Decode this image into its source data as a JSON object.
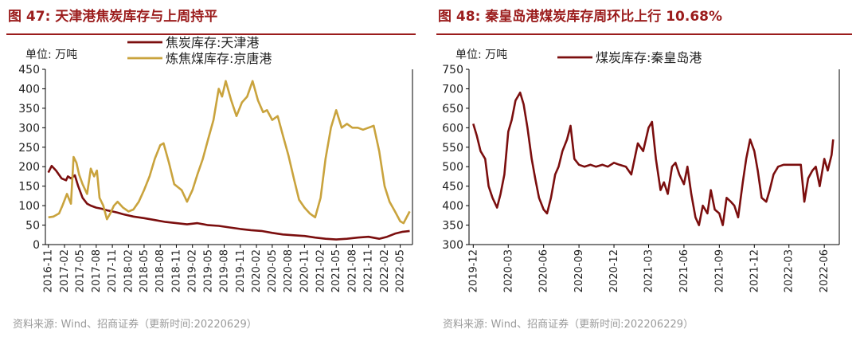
{
  "charts": [
    {
      "figure_title": "图 47:  天津港焦炭库存与上周持平",
      "source": "资料来源:  Wind、招商证券（更新时间:20220629）"
    },
    {
      "figure_title": "图 48:  秦皇岛港煤炭库存周环比上行 10.68%",
      "source": "资料来源:  Wind、招商证券（更新时间:202206229）"
    }
  ],
  "colors": {
    "title": "#9b1c1c",
    "series_dark_red": "#7b0e0e",
    "series_gold": "#c9a33d"
  },
  "chart_data": [
    {
      "type": "line",
      "unit_label": "单位:  万吨",
      "ylim": [
        0,
        450
      ],
      "yticks": [
        0,
        50,
        100,
        150,
        200,
        250,
        300,
        350,
        400,
        450
      ],
      "xtick_labels": [
        "2016-11",
        "2017-02",
        "2017-05",
        "2017-08",
        "2017-11",
        "2018-02",
        "2018-05",
        "2018-08",
        "2018-11",
        "2019-02",
        "2019-05",
        "2019-08",
        "2019-11",
        "2020-02",
        "2020-05",
        "2020-08",
        "2020-11",
        "2021-02",
        "2021-05",
        "2021-08",
        "2021-11",
        "2022-02",
        "2022-05"
      ],
      "legend_position": "top",
      "grid": false,
      "series": [
        {
          "name": "焦炭库存:天津港",
          "color": "#7b0e0e",
          "x": [
            "2016-11-01",
            "2016-11-20",
            "2016-12-15",
            "2017-01-15",
            "2017-02-10",
            "2017-02-20",
            "2017-03-10",
            "2017-04-01",
            "2017-04-20",
            "2017-05-15",
            "2017-06-10",
            "2017-07-01",
            "2017-08-01",
            "2017-09-01",
            "2017-10-01",
            "2017-11-01",
            "2017-12-01",
            "2018-01-01",
            "2018-03-01",
            "2018-05-01",
            "2018-07-01",
            "2018-09-01",
            "2018-11-01",
            "2019-01-01",
            "2019-03-01",
            "2019-05-01",
            "2019-07-01",
            "2019-09-01",
            "2019-11-01",
            "2020-01-01",
            "2020-03-01",
            "2020-05-01",
            "2020-07-01",
            "2020-09-01",
            "2020-11-01",
            "2021-01-01",
            "2021-03-01",
            "2021-05-01",
            "2021-07-01",
            "2021-09-01",
            "2021-11-01",
            "2022-01-01",
            "2022-02-15",
            "2022-04-01",
            "2022-05-15",
            "2022-06-24"
          ],
          "values": [
            185,
            202,
            190,
            170,
            165,
            175,
            170,
            178,
            150,
            120,
            105,
            100,
            95,
            92,
            88,
            85,
            82,
            78,
            72,
            68,
            63,
            58,
            55,
            52,
            55,
            50,
            48,
            44,
            40,
            37,
            35,
            30,
            26,
            24,
            22,
            18,
            15,
            13,
            15,
            18,
            20,
            15,
            20,
            28,
            33,
            35
          ]
        },
        {
          "name": "炼焦煤库存:京唐港",
          "color": "#c9a33d",
          "x": [
            "2016-11-01",
            "2016-12-01",
            "2017-01-01",
            "2017-01-20",
            "2017-02-15",
            "2017-03-10",
            "2017-03-25",
            "2017-04-10",
            "2017-04-25",
            "2017-05-15",
            "2017-06-10",
            "2017-07-01",
            "2017-07-20",
            "2017-08-05",
            "2017-08-20",
            "2017-09-10",
            "2017-10-01",
            "2017-10-20",
            "2017-11-10",
            "2017-12-01",
            "2018-01-01",
            "2018-02-01",
            "2018-03-01",
            "2018-04-01",
            "2018-05-01",
            "2018-06-01",
            "2018-07-01",
            "2018-08-01",
            "2018-08-20",
            "2018-09-20",
            "2018-10-20",
            "2018-12-01",
            "2019-01-01",
            "2019-02-01",
            "2019-03-01",
            "2019-04-01",
            "2019-05-01",
            "2019-06-01",
            "2019-07-01",
            "2019-07-20",
            "2019-08-10",
            "2019-09-10",
            "2019-10-10",
            "2019-11-10",
            "2019-12-10",
            "2020-01-10",
            "2020-02-10",
            "2020-03-10",
            "2020-04-01",
            "2020-05-01",
            "2020-06-01",
            "2020-07-01",
            "2020-08-01",
            "2020-09-01",
            "2020-10-01",
            "2020-11-01",
            "2020-12-01",
            "2021-01-01",
            "2021-02-01",
            "2021-03-01",
            "2021-04-01",
            "2021-05-01",
            "2021-06-01",
            "2021-07-01",
            "2021-08-01",
            "2021-09-01",
            "2021-10-01",
            "2021-11-01",
            "2021-12-01",
            "2022-01-01",
            "2022-02-01",
            "2022-03-01",
            "2022-04-01",
            "2022-05-01",
            "2022-05-20",
            "2022-06-24"
          ],
          "values": [
            70,
            72,
            80,
            100,
            130,
            105,
            225,
            210,
            180,
            155,
            130,
            195,
            175,
            190,
            120,
            100,
            65,
            80,
            100,
            110,
            95,
            85,
            90,
            110,
            140,
            175,
            220,
            255,
            260,
            210,
            155,
            140,
            110,
            140,
            180,
            220,
            270,
            320,
            400,
            380,
            420,
            370,
            330,
            365,
            380,
            420,
            370,
            340,
            345,
            320,
            330,
            280,
            230,
            170,
            115,
            95,
            80,
            70,
            120,
            220,
            300,
            345,
            300,
            310,
            300,
            300,
            295,
            300,
            305,
            240,
            150,
            110,
            85,
            60,
            55,
            85
          ]
        }
      ]
    },
    {
      "type": "line",
      "unit_label": "单位:  万吨",
      "ylim": [
        300,
        750
      ],
      "yticks": [
        300,
        350,
        400,
        450,
        500,
        550,
        600,
        650,
        700,
        750
      ],
      "xtick_labels": [
        "2019-12",
        "2020-03",
        "2020-06",
        "2020-09",
        "2020-12",
        "2021-03",
        "2021-06",
        "2021-09",
        "2021-12",
        "2022-03",
        "2022-06"
      ],
      "legend_position": "top",
      "grid": false,
      "series": [
        {
          "name": "煤炭库存:秦皇岛港",
          "color": "#7b0e0e",
          "x": [
            "2019-12-01",
            "2019-12-10",
            "2019-12-20",
            "2020-01-01",
            "2020-01-10",
            "2020-01-20",
            "2020-02-01",
            "2020-02-10",
            "2020-02-20",
            "2020-03-01",
            "2020-03-10",
            "2020-03-20",
            "2020-04-01",
            "2020-04-10",
            "2020-04-20",
            "2020-05-01",
            "2020-05-10",
            "2020-05-20",
            "2020-06-01",
            "2020-06-10",
            "2020-06-20",
            "2020-07-01",
            "2020-07-10",
            "2020-07-20",
            "2020-08-01",
            "2020-08-10",
            "2020-08-20",
            "2020-09-01",
            "2020-09-15",
            "2020-10-01",
            "2020-10-15",
            "2020-11-01",
            "2020-11-15",
            "2020-12-01",
            "2020-12-15",
            "2021-01-01",
            "2021-01-15",
            "2021-02-01",
            "2021-02-15",
            "2021-03-01",
            "2021-03-10",
            "2021-03-20",
            "2021-04-01",
            "2021-04-10",
            "2021-04-20",
            "2021-05-01",
            "2021-05-10",
            "2021-05-20",
            "2021-06-01",
            "2021-06-10",
            "2021-06-20",
            "2021-07-01",
            "2021-07-10",
            "2021-07-20",
            "2021-08-01",
            "2021-08-10",
            "2021-08-20",
            "2021-09-01",
            "2021-09-10",
            "2021-09-20",
            "2021-10-01",
            "2021-10-10",
            "2021-10-20",
            "2021-11-01",
            "2021-11-10",
            "2021-11-20",
            "2021-12-01",
            "2021-12-10",
            "2021-12-20",
            "2022-01-01",
            "2022-01-10",
            "2022-01-20",
            "2022-02-01",
            "2022-02-15",
            "2022-03-01",
            "2022-03-15",
            "2022-04-01",
            "2022-04-10",
            "2022-04-20",
            "2022-05-01",
            "2022-05-10",
            "2022-05-20",
            "2022-06-01",
            "2022-06-10",
            "2022-06-20",
            "2022-06-24"
          ],
          "values": [
            610,
            580,
            540,
            520,
            450,
            420,
            395,
            430,
            480,
            590,
            620,
            670,
            690,
            660,
            600,
            520,
            470,
            420,
            390,
            380,
            420,
            480,
            500,
            540,
            570,
            605,
            520,
            505,
            500,
            505,
            500,
            505,
            500,
            510,
            505,
            500,
            480,
            560,
            540,
            600,
            615,
            520,
            440,
            460,
            430,
            500,
            510,
            480,
            455,
            500,
            430,
            370,
            350,
            400,
            380,
            440,
            390,
            380,
            350,
            420,
            410,
            400,
            370,
            460,
            520,
            570,
            540,
            490,
            420,
            410,
            440,
            480,
            500,
            505,
            505,
            505,
            505,
            410,
            470,
            490,
            500,
            450,
            520,
            490,
            530,
            570
          ]
        }
      ]
    }
  ]
}
